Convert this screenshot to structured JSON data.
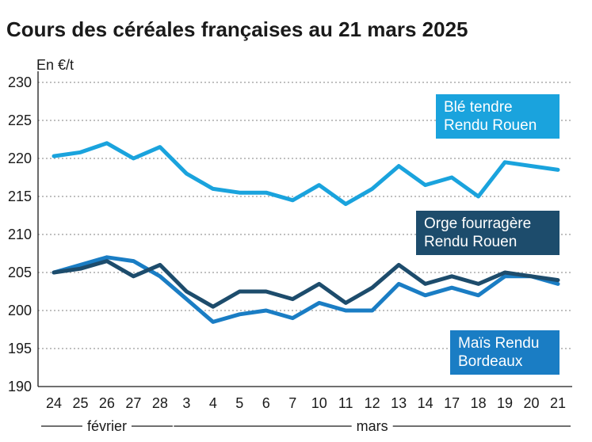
{
  "chart_data": {
    "type": "line",
    "title": "Cours des céréales françaises au 21 mars 2025",
    "ylabel": "En €/t",
    "xlabel": "",
    "ylim": [
      190,
      230
    ],
    "yticks": [
      190,
      195,
      200,
      205,
      210,
      215,
      220,
      225,
      230
    ],
    "grid": true,
    "categories": [
      "24",
      "25",
      "26",
      "27",
      "28",
      "3",
      "4",
      "5",
      "6",
      "7",
      "10",
      "11",
      "12",
      "13",
      "14",
      "17",
      "18",
      "19",
      "20",
      "21"
    ],
    "month_labels": [
      {
        "label": "février",
        "from": 0,
        "to": 4
      },
      {
        "label": "mars",
        "from": 5,
        "to": 19
      }
    ],
    "series": [
      {
        "name": "Blé tendre Rendu Rouen",
        "label_lines": [
          "Blé tendre",
          "Rendu Rouen"
        ],
        "color": "#1aa3dd",
        "values": [
          220.3,
          220.8,
          222.0,
          220.0,
          221.5,
          218.0,
          216.0,
          215.5,
          215.5,
          214.5,
          216.5,
          214.0,
          216.0,
          219.0,
          216.5,
          217.5,
          215.0,
          219.5,
          219.0,
          218.5
        ]
      },
      {
        "name": "Orge fourragère Rendu Rouen",
        "label_lines": [
          "Orge fourragère",
          "Rendu Rouen"
        ],
        "color": "#1d4c6c",
        "values": [
          205.0,
          205.5,
          206.5,
          204.5,
          206.0,
          202.5,
          200.5,
          202.5,
          202.5,
          201.5,
          203.5,
          201.0,
          203.0,
          206.0,
          203.5,
          204.5,
          203.5,
          205.0,
          204.5,
          204.0
        ]
      },
      {
        "name": "Maïs Rendu Bordeaux",
        "label_lines": [
          "Maïs Rendu",
          "Bordeaux"
        ],
        "color": "#1a7dc4",
        "values": [
          205.0,
          206.0,
          207.0,
          206.5,
          204.5,
          201.5,
          198.5,
          199.5,
          200.0,
          199.0,
          201.0,
          200.0,
          200.0,
          203.5,
          202.0,
          203.0,
          202.0,
          204.5,
          204.5,
          203.5
        ]
      }
    ]
  }
}
